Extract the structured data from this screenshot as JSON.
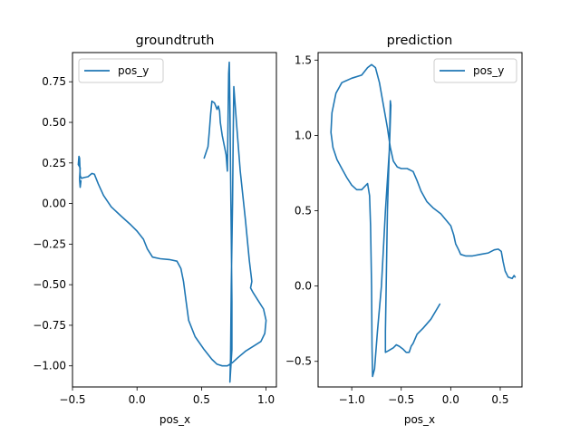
{
  "chart_data": [
    {
      "type": "line",
      "title": "groundtruth",
      "xlabel": "pos_x",
      "ylabel": "",
      "xlim": [
        -0.5,
        1.08
      ],
      "ylim": [
        -1.13,
        0.93
      ],
      "xticks": [
        -0.5,
        0.0,
        0.5,
        1.0
      ],
      "xtick_labels": [
        "−0.5",
        "0.0",
        "0.5",
        "1.0"
      ],
      "yticks": [
        -1.0,
        -0.75,
        -0.5,
        -0.25,
        0.0,
        0.25,
        0.5,
        0.75
      ],
      "ytick_labels": [
        "−1.00",
        "−0.75",
        "−0.50",
        "−0.25",
        "0.00",
        "0.25",
        "0.50",
        "0.75"
      ],
      "grid": false,
      "legend": {
        "position": "upper-left",
        "entries": [
          "pos_y"
        ]
      },
      "series": [
        {
          "name": "pos_y",
          "color": "#1f77b4",
          "points": [
            [
              0.52,
              0.28
            ],
            [
              0.55,
              0.35
            ],
            [
              0.56,
              0.44
            ],
            [
              0.57,
              0.55
            ],
            [
              0.58,
              0.63
            ],
            [
              0.6,
              0.62
            ],
            [
              0.61,
              0.6
            ],
            [
              0.62,
              0.58
            ],
            [
              0.63,
              0.6
            ],
            [
              0.64,
              0.57
            ],
            [
              0.645,
              0.5
            ],
            [
              0.66,
              0.42
            ],
            [
              0.69,
              0.3
            ],
            [
              0.7,
              0.2
            ],
            [
              0.705,
              0.5
            ],
            [
              0.71,
              0.8
            ],
            [
              0.715,
              0.87
            ],
            [
              0.72,
              0.6
            ],
            [
              0.725,
              0.2
            ],
            [
              0.73,
              -0.2
            ],
            [
              0.735,
              -0.6
            ],
            [
              0.735,
              -0.9
            ],
            [
              0.72,
              -1.1
            ],
            [
              0.725,
              -0.95
            ],
            [
              0.73,
              -0.5
            ],
            [
              0.74,
              0.0
            ],
            [
              0.745,
              0.4
            ],
            [
              0.75,
              0.72
            ],
            [
              0.77,
              0.5
            ],
            [
              0.8,
              0.2
            ],
            [
              0.84,
              -0.1
            ],
            [
              0.87,
              -0.35
            ],
            [
              0.89,
              -0.48
            ],
            [
              0.88,
              -0.52
            ],
            [
              0.9,
              -0.55
            ],
            [
              0.94,
              -0.6
            ],
            [
              0.98,
              -0.65
            ],
            [
              1.0,
              -0.72
            ],
            [
              0.99,
              -0.8
            ],
            [
              0.96,
              -0.85
            ],
            [
              0.9,
              -0.88
            ],
            [
              0.84,
              -0.91
            ],
            [
              0.78,
              -0.95
            ],
            [
              0.74,
              -0.98
            ],
            [
              0.7,
              -1.0
            ],
            [
              0.66,
              -1.0
            ],
            [
              0.62,
              -0.99
            ],
            [
              0.58,
              -0.96
            ],
            [
              0.52,
              -0.9
            ],
            [
              0.45,
              -0.82
            ],
            [
              0.4,
              -0.72
            ],
            [
              0.38,
              -0.6
            ],
            [
              0.36,
              -0.48
            ],
            [
              0.34,
              -0.4
            ],
            [
              0.31,
              -0.355
            ],
            [
              0.25,
              -0.345
            ],
            [
              0.18,
              -0.34
            ],
            [
              0.12,
              -0.33
            ],
            [
              0.08,
              -0.28
            ],
            [
              0.05,
              -0.22
            ],
            [
              0.0,
              -0.17
            ],
            [
              -0.05,
              -0.13
            ],
            [
              -0.12,
              -0.08
            ],
            [
              -0.2,
              -0.02
            ],
            [
              -0.26,
              0.05
            ],
            [
              -0.3,
              0.12
            ],
            [
              -0.33,
              0.18
            ],
            [
              -0.35,
              0.185
            ],
            [
              -0.38,
              0.165
            ],
            [
              -0.41,
              0.16
            ],
            [
              -0.43,
              0.155
            ],
            [
              -0.44,
              0.17
            ],
            [
              -0.445,
              0.28
            ],
            [
              -0.45,
              0.29
            ],
            [
              -0.455,
              0.24
            ],
            [
              -0.44,
              0.22
            ],
            [
              -0.445,
              0.15
            ],
            [
              -0.44,
              0.1
            ],
            [
              -0.435,
              0.14
            ]
          ]
        }
      ]
    },
    {
      "type": "line",
      "title": "prediction",
      "xlabel": "pos_x",
      "ylabel": "",
      "xlim": [
        -1.34,
        0.72
      ],
      "ylim": [
        -0.67,
        1.55
      ],
      "xticks": [
        -1.0,
        -0.5,
        0.0,
        0.5
      ],
      "xtick_labels": [
        "−1.0",
        "−0.5",
        "0.0",
        "0.5"
      ],
      "yticks": [
        -0.5,
        0.0,
        0.5,
        1.0,
        1.5
      ],
      "ytick_labels": [
        "−0.5",
        "0.0",
        "0.5",
        "1.0",
        "1.5"
      ],
      "grid": false,
      "legend": {
        "position": "upper-right",
        "entries": [
          "pos_y"
        ]
      },
      "series": [
        {
          "name": "pos_y",
          "color": "#1f77b4",
          "points": [
            [
              -0.11,
              -0.12
            ],
            [
              -0.2,
              -0.22
            ],
            [
              -0.28,
              -0.28
            ],
            [
              -0.34,
              -0.32
            ],
            [
              -0.38,
              -0.38
            ],
            [
              -0.4,
              -0.4
            ],
            [
              -0.42,
              -0.44
            ],
            [
              -0.45,
              -0.44
            ],
            [
              -0.48,
              -0.42
            ],
            [
              -0.52,
              -0.4
            ],
            [
              -0.55,
              -0.39
            ],
            [
              -0.58,
              -0.41
            ],
            [
              -0.63,
              -0.43
            ],
            [
              -0.66,
              -0.44
            ],
            [
              -0.66,
              -0.3
            ],
            [
              -0.65,
              0.1
            ],
            [
              -0.64,
              0.5
            ],
            [
              -0.62,
              0.9
            ],
            [
              -0.61,
              1.23
            ],
            [
              -0.605,
              1.2
            ],
            [
              -0.62,
              0.9
            ],
            [
              -0.66,
              0.5
            ],
            [
              -0.7,
              0.0
            ],
            [
              -0.74,
              -0.3
            ],
            [
              -0.77,
              -0.55
            ],
            [
              -0.79,
              -0.6
            ],
            [
              -0.795,
              -0.4
            ],
            [
              -0.8,
              0.0
            ],
            [
              -0.81,
              0.4
            ],
            [
              -0.82,
              0.6
            ],
            [
              -0.84,
              0.68
            ],
            [
              -0.87,
              0.66
            ],
            [
              -0.9,
              0.64
            ],
            [
              -0.95,
              0.64
            ],
            [
              -1.0,
              0.67
            ],
            [
              -1.05,
              0.72
            ],
            [
              -1.1,
              0.78
            ],
            [
              -1.15,
              0.84
            ],
            [
              -1.19,
              0.92
            ],
            [
              -1.21,
              1.02
            ],
            [
              -1.2,
              1.15
            ],
            [
              -1.16,
              1.28
            ],
            [
              -1.1,
              1.35
            ],
            [
              -1.0,
              1.38
            ],
            [
              -0.9,
              1.4
            ],
            [
              -0.84,
              1.45
            ],
            [
              -0.8,
              1.47
            ],
            [
              -0.76,
              1.45
            ],
            [
              -0.72,
              1.35
            ],
            [
              -0.68,
              1.2
            ],
            [
              -0.64,
              1.05
            ],
            [
              -0.61,
              0.92
            ],
            [
              -0.58,
              0.83
            ],
            [
              -0.54,
              0.79
            ],
            [
              -0.5,
              0.78
            ],
            [
              -0.44,
              0.78
            ],
            [
              -0.38,
              0.76
            ],
            [
              -0.34,
              0.7
            ],
            [
              -0.3,
              0.63
            ],
            [
              -0.24,
              0.56
            ],
            [
              -0.18,
              0.52
            ],
            [
              -0.1,
              0.48
            ],
            [
              -0.05,
              0.44
            ],
            [
              0.0,
              0.4
            ],
            [
              0.03,
              0.34
            ],
            [
              0.05,
              0.28
            ],
            [
              0.08,
              0.24
            ],
            [
              0.1,
              0.21
            ],
            [
              0.15,
              0.2
            ],
            [
              0.22,
              0.2
            ],
            [
              0.3,
              0.21
            ],
            [
              0.38,
              0.22
            ],
            [
              0.44,
              0.24
            ],
            [
              0.48,
              0.245
            ],
            [
              0.51,
              0.23
            ],
            [
              0.53,
              0.16
            ],
            [
              0.55,
              0.1
            ],
            [
              0.58,
              0.06
            ],
            [
              0.62,
              0.05
            ],
            [
              0.64,
              0.07
            ],
            [
              0.65,
              0.06
            ]
          ]
        }
      ]
    }
  ]
}
